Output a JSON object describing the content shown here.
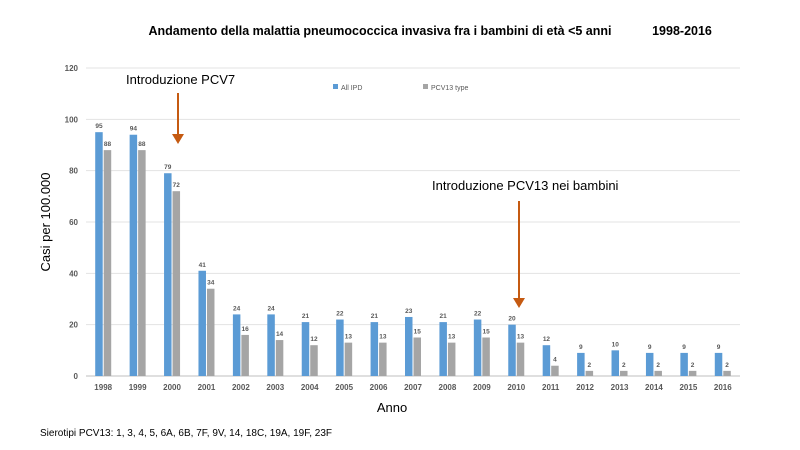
{
  "chart_data": {
    "type": "bar",
    "title": "Andamento della malattia pneumococcica invasiva fra i bambini di età <5 anni",
    "title_years": "1998-2016",
    "xlabel": "Anno",
    "ylabel": "Casi per 100.000",
    "ylim": [
      0,
      120
    ],
    "yticks": [
      0,
      20,
      40,
      60,
      80,
      100,
      120
    ],
    "grid": true,
    "legend_position": "top-center",
    "categories": [
      "1998",
      "1999",
      "2000",
      "2001",
      "2002",
      "2003",
      "2004",
      "2005",
      "2006",
      "2007",
      "2008",
      "2009",
      "2010",
      "2011",
      "2012",
      "2013",
      "2014",
      "2015",
      "2016"
    ],
    "series": [
      {
        "name": "All IPD",
        "color": "#5b9bd5",
        "values": [
          95,
          94,
          79,
          41,
          24,
          24,
          21,
          22,
          21,
          23,
          21,
          22,
          20,
          12,
          9,
          10,
          9,
          9,
          9
        ]
      },
      {
        "name": "PCV13 type",
        "color": "#a5a5a5",
        "values": [
          88,
          88,
          72,
          34,
          16,
          14,
          12,
          13,
          13,
          15,
          13,
          15,
          13,
          4,
          2,
          2,
          2,
          2,
          2
        ]
      }
    ],
    "annotations": [
      {
        "text": "Introduzione PCV7",
        "category": "2000"
      },
      {
        "text": "Introduzione PCV13 nei bambini",
        "category": "2010"
      }
    ],
    "footnote": "Sierotipi PCV13: 1, 3, 4, 5, 6A, 6B, 7F, 9V, 14, 18C, 19A, 19F, 23F",
    "arrow_color": "#c55a11"
  }
}
